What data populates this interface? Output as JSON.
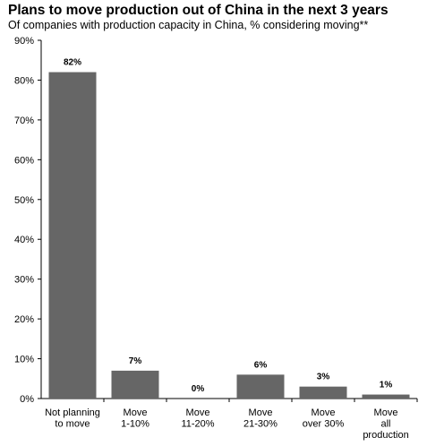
{
  "chart_data": {
    "type": "bar",
    "title": "Plans to move production out of China in the next 3 years",
    "subtitle": "Of companies with production capacity  in China, % considering moving**",
    "xlabel": "",
    "ylabel": "",
    "categories": [
      [
        "Not planning",
        "to move"
      ],
      [
        "Move",
        "1-10%"
      ],
      [
        "Move",
        "11-20%"
      ],
      [
        "Move",
        "21-30%"
      ],
      [
        "Move",
        "over 30%"
      ],
      [
        "Move",
        "all",
        "production"
      ]
    ],
    "values": [
      82,
      7,
      0,
      6,
      3,
      1
    ],
    "value_labels": [
      "82%",
      "7%",
      "0%",
      "6%",
      "3%",
      "1%"
    ],
    "ylim": [
      0,
      90
    ],
    "yticks": [
      0,
      10,
      20,
      30,
      40,
      50,
      60,
      70,
      80,
      90
    ],
    "ytick_labels": [
      "0%",
      "10%",
      "20%",
      "30%",
      "40%",
      "50%",
      "60%",
      "70%",
      "80%",
      "90%"
    ],
    "grid": false,
    "legend": "none",
    "bar_color": "#666666"
  }
}
